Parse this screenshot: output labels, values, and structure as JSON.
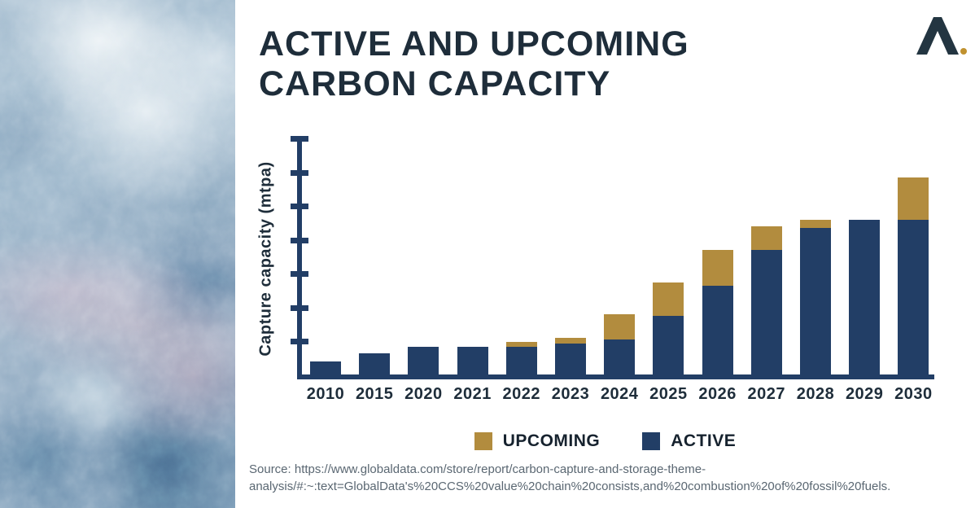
{
  "page": {
    "background": "#ffffff"
  },
  "photo": {
    "description": "satellite aerial view of mountainous terrain in blue, white and pink tones"
  },
  "header": {
    "title_line1": "ACTIVE AND UPCOMING",
    "title_line2": "CARBON CAPACITY"
  },
  "logo": {
    "name": "lambda-mark with gold dot",
    "mark_color": "#233541",
    "dot_color": "#c0912f"
  },
  "chart_data": {
    "type": "bar",
    "stacked": true,
    "title": "ACTIVE AND UPCOMING CARBON CAPACITY",
    "xlabel": "",
    "ylabel": "Capture capacity (mtpa)",
    "categories": [
      "2010",
      "2015",
      "2020",
      "2021",
      "2022",
      "2023",
      "2024",
      "2025",
      "2026",
      "2027",
      "2028",
      "2029",
      "2030"
    ],
    "series": [
      {
        "name": "ACTIVE",
        "color": "#223e66",
        "values": [
          8,
          13,
          17,
          17,
          17,
          19,
          21,
          35,
          53,
          74,
          87,
          92,
          92
        ]
      },
      {
        "name": "UPCOMING",
        "color": "#b28c3e",
        "values": [
          0,
          0,
          0,
          0,
          3,
          3,
          15,
          20,
          21,
          14,
          5,
          0,
          25
        ]
      }
    ],
    "totals": [
      8,
      13,
      17,
      17,
      20,
      22,
      36,
      55,
      74,
      88,
      92,
      92,
      117
    ],
    "ylim": [
      0,
      145
    ],
    "ytick_interval": 20,
    "ytick_count": 7,
    "ytick_labels_visible": false,
    "grid": false,
    "legend_position": "bottom",
    "axis_color": "#223e66",
    "note": "y-axis has unlabeled tick marks only; values estimated at 20 mtpa per tick"
  },
  "legend": {
    "items": [
      {
        "label": "UPCOMING",
        "color": "#b28c3e"
      },
      {
        "label": "ACTIVE",
        "color": "#223e66"
      }
    ]
  },
  "source": {
    "line1": "Source: https://www.globaldata.com/store/report/carbon-capture-and-storage-theme-",
    "line2": "analysis/#:~:text=GlobalData's%20CCS%20value%20chain%20consists,and%20combustion%20of%20fossil%20fuels."
  }
}
